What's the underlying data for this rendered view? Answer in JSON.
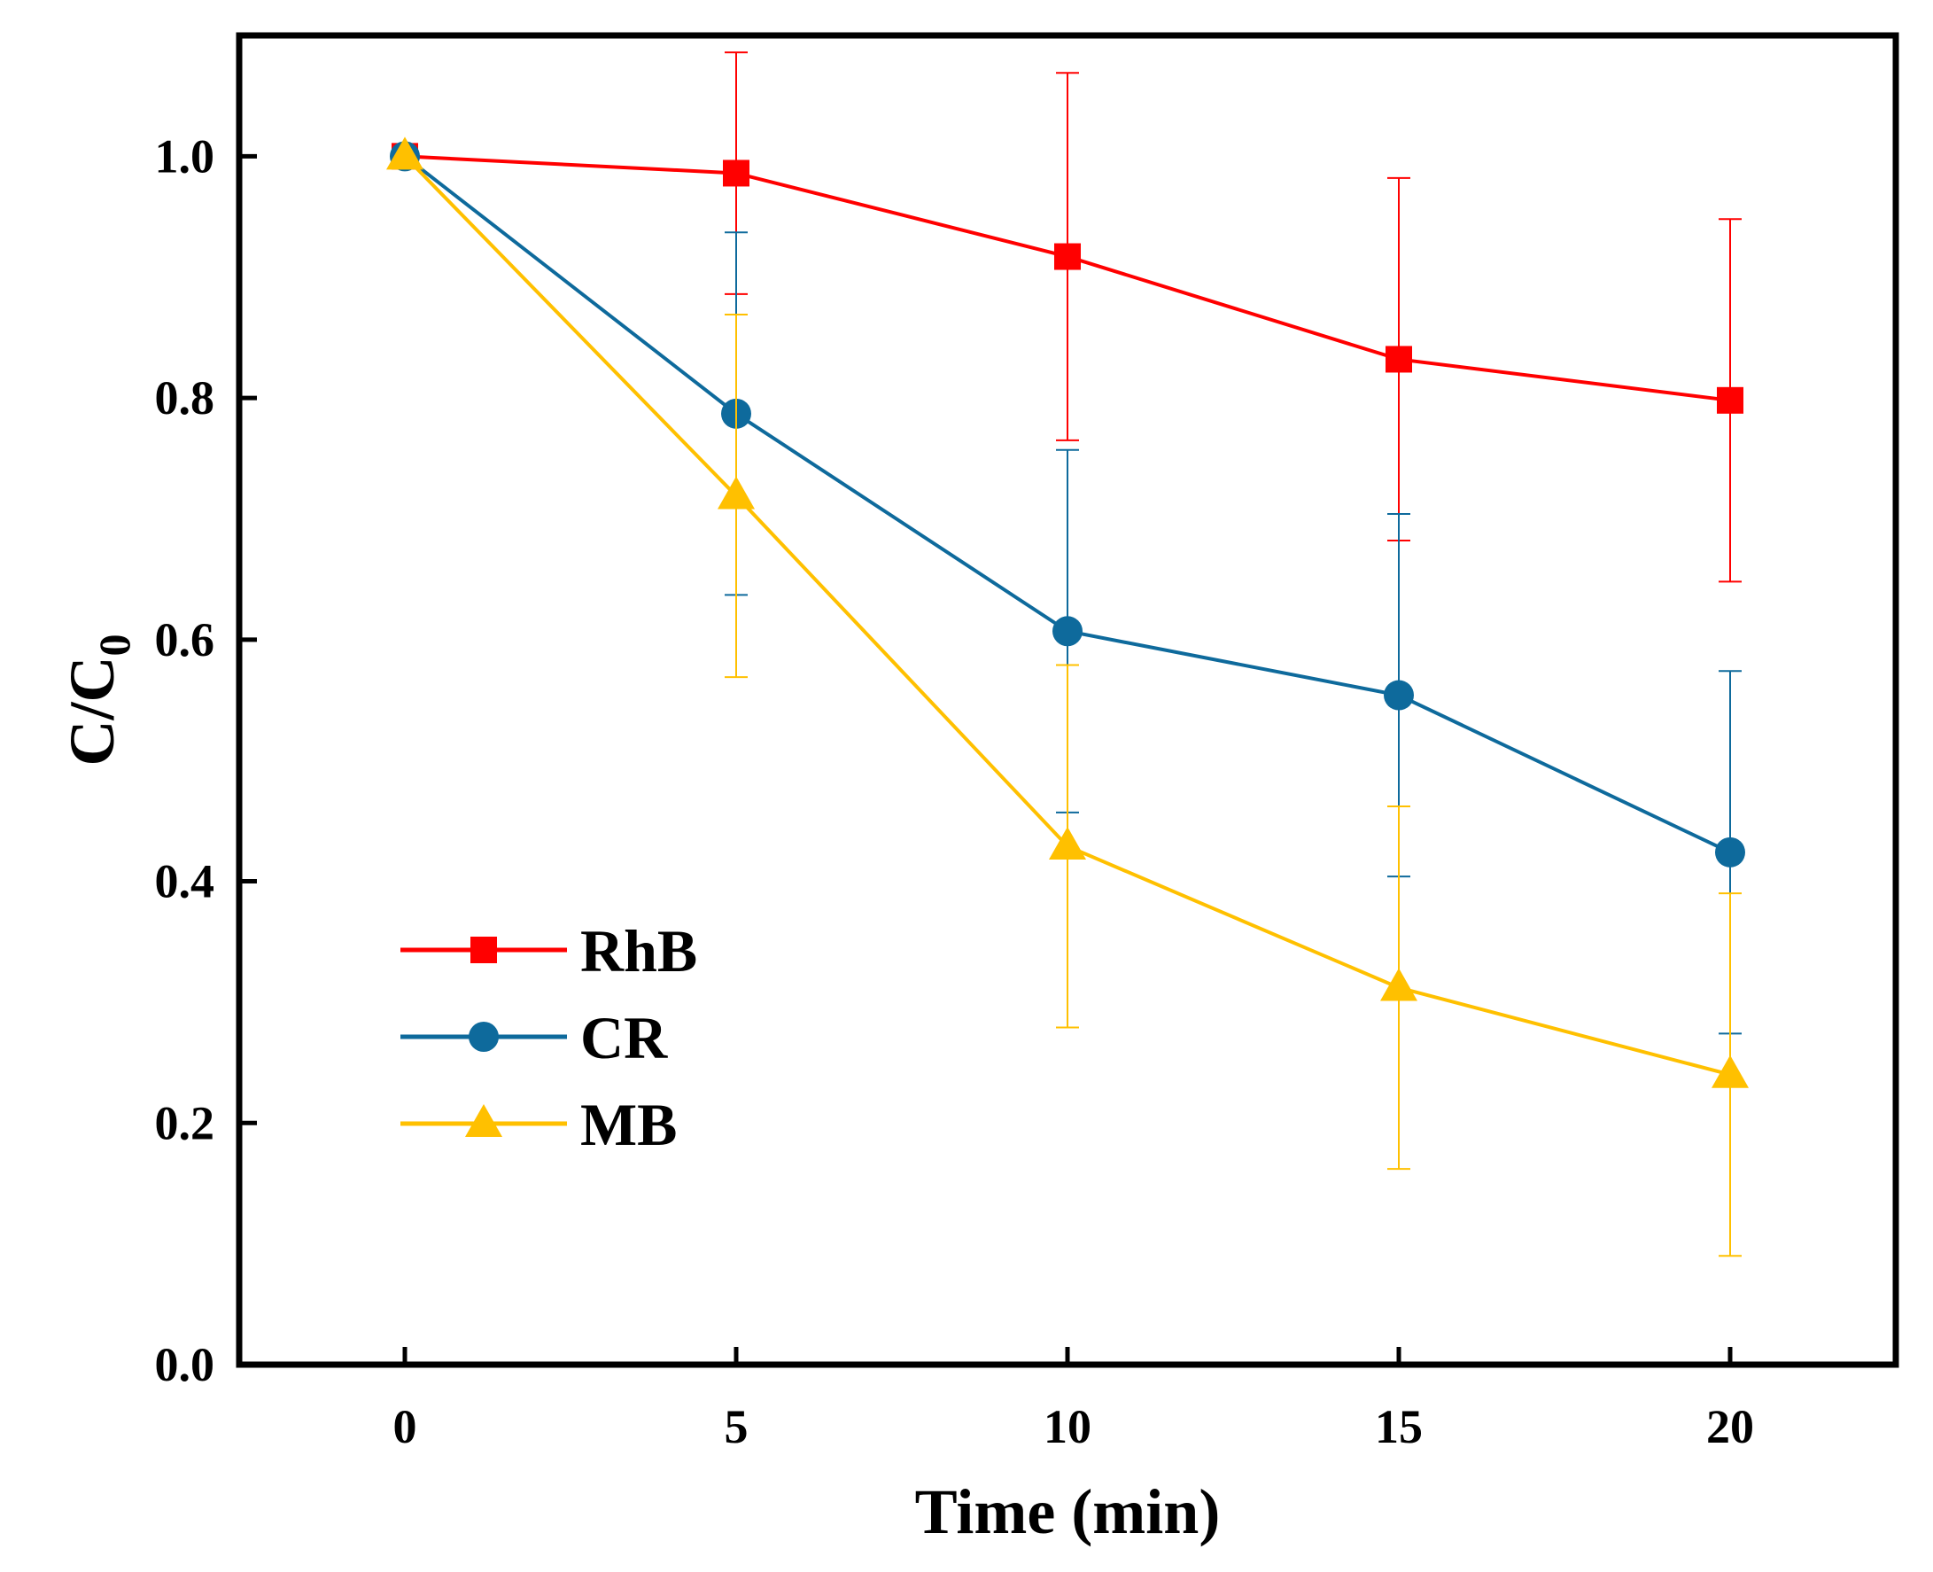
{
  "chart_data": {
    "type": "line",
    "title": "",
    "xlabel": "Time (min)",
    "ylabel": {
      "main": "C/C",
      "subscript": "0"
    },
    "x": [
      0,
      5,
      10,
      15,
      20
    ],
    "xticks": [
      "0",
      "5",
      "10",
      "15",
      "20"
    ],
    "yticks": [
      "0.0",
      "0.2",
      "0.4",
      "0.6",
      "0.8",
      "1.0"
    ],
    "xlim": [
      -2.5,
      22.5
    ],
    "ylim": [
      0.0,
      1.1
    ],
    "grid": false,
    "legend_position": "bottom-left",
    "series": [
      {
        "name": "RhB",
        "color": "#ff0000",
        "marker": "square",
        "values": [
          1.0,
          0.986,
          0.917,
          0.832,
          0.798
        ],
        "errors": [
          0.0,
          0.1,
          0.152,
          0.15,
          0.15
        ]
      },
      {
        "name": "CR",
        "color": "#0e6a9c",
        "marker": "circle",
        "values": [
          1.0,
          0.787,
          0.607,
          0.554,
          0.424
        ],
        "errors": [
          0.0,
          0.15,
          0.15,
          0.15,
          0.15
        ]
      },
      {
        "name": "MB",
        "color": "#ffc000",
        "marker": "triangle",
        "values": [
          1.0,
          0.719,
          0.429,
          0.312,
          0.24
        ],
        "errors": [
          0.0,
          0.15,
          0.15,
          0.15,
          0.15
        ]
      }
    ]
  }
}
